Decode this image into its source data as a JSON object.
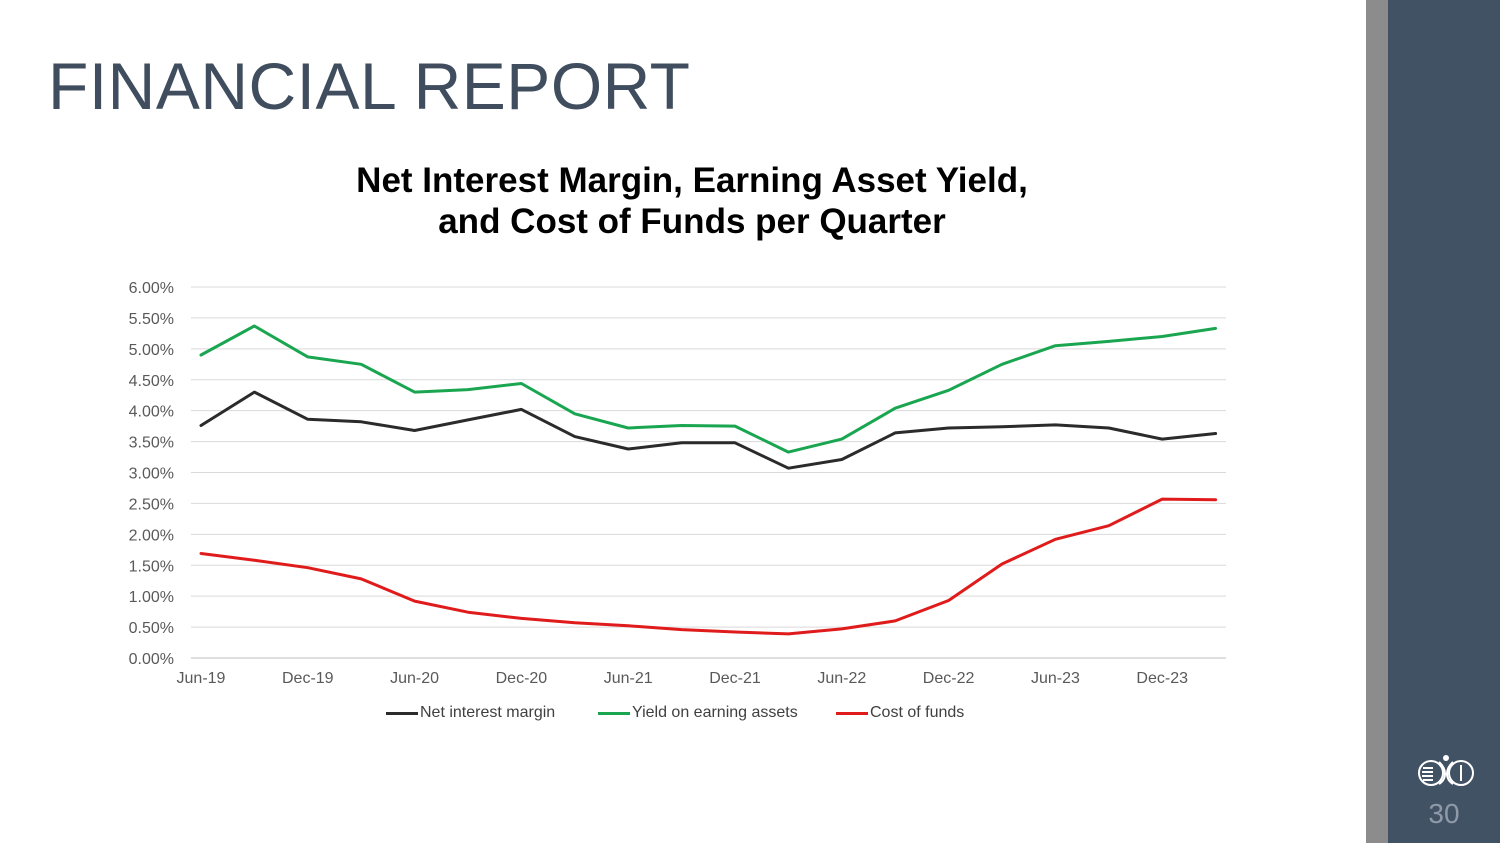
{
  "slide": {
    "title": "FINANCIAL REPORT",
    "page_number": "30",
    "colors": {
      "title": "#3f4d5e",
      "sidebar_dark": "#425265",
      "sidebar_gray": "#8c8c8c"
    },
    "logo_icon": "company-logo-icon"
  },
  "chart_data": {
    "type": "line",
    "title_lines": [
      "Net Interest Margin, Earning Asset Yield,",
      "and Cost of Funds per Quarter"
    ],
    "x": [
      "Jun-19",
      "Sep-19",
      "Dec-19",
      "Mar-20",
      "Jun-20",
      "Sep-20",
      "Dec-20",
      "Mar-21",
      "Jun-21",
      "Sep-21",
      "Dec-21",
      "Mar-22",
      "Jun-22",
      "Sep-22",
      "Dec-22",
      "Mar-23",
      "Jun-23",
      "Sep-23",
      "Dec-23",
      "Mar-24"
    ],
    "x_tick_labels": [
      "Jun-19",
      "Dec-19",
      "Jun-20",
      "Dec-20",
      "Jun-21",
      "Dec-21",
      "Jun-22",
      "Dec-22",
      "Jun-23",
      "Dec-23"
    ],
    "y_ticks": [
      "0.00%",
      "0.50%",
      "1.00%",
      "1.50%",
      "2.00%",
      "2.50%",
      "3.00%",
      "3.50%",
      "4.00%",
      "4.50%",
      "5.00%",
      "5.50%",
      "6.00%"
    ],
    "ylim": [
      0,
      6
    ],
    "grid": true,
    "legend_position": "bottom",
    "series": [
      {
        "name": "Net interest margin",
        "color": "#2b2b2b",
        "values": [
          3.76,
          4.3,
          3.86,
          3.82,
          3.68,
          3.85,
          4.02,
          3.58,
          3.38,
          3.48,
          3.48,
          3.07,
          3.21,
          3.64,
          3.72,
          3.74,
          3.77,
          3.72,
          3.54,
          3.63
        ]
      },
      {
        "name": "Yield on earning assets",
        "color": "#1aa650",
        "values": [
          4.9,
          5.37,
          4.87,
          4.75,
          4.3,
          4.34,
          4.44,
          3.95,
          3.72,
          3.76,
          3.75,
          3.33,
          3.54,
          4.04,
          4.33,
          4.75,
          5.05,
          5.12,
          5.2,
          5.33
        ]
      },
      {
        "name": "Cost of  funds",
        "color": "#e01b1b",
        "values": [
          1.69,
          1.58,
          1.46,
          1.28,
          0.92,
          0.74,
          0.64,
          0.57,
          0.52,
          0.46,
          0.42,
          0.39,
          0.47,
          0.6,
          0.93,
          1.52,
          1.92,
          2.14,
          2.57,
          2.56
        ]
      }
    ]
  }
}
